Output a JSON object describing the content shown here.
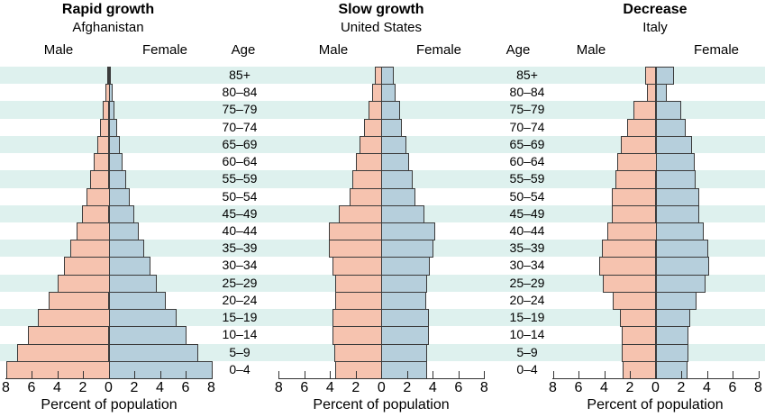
{
  "figure": {
    "age_header_label": "Age",
    "male_label": "Male",
    "female_label": "Female",
    "xlabel": "Percent of population",
    "axis_tick_labels": [
      "8",
      "6",
      "4",
      "2",
      "0",
      "2",
      "4",
      "6",
      "8"
    ]
  },
  "age_groups_top_down": [
    "85+",
    "80–84",
    "75–79",
    "70–74",
    "65–69",
    "60–64",
    "55–59",
    "50–54",
    "45–49",
    "40–44",
    "35–39",
    "30–34",
    "25–29",
    "20–24",
    "15–19",
    "10–14",
    "5–9",
    "0–4"
  ],
  "colors": {
    "male_fill": "#F6C3AF",
    "female_fill": "#B6CFDC",
    "stripe": "#DEF1EE",
    "bar_border": "#3B3B3B",
    "axis": "#333333",
    "text": "#000000"
  },
  "chart_data": [
    {
      "type": "bar",
      "variant": "population-pyramid",
      "title": "Rapid growth",
      "subtitle": "Afghanistan",
      "xlabel": "Percent of population",
      "x_range_percent_each_side": [
        0,
        8
      ],
      "categories_top_down": [
        "85+",
        "80–84",
        "75–79",
        "70–74",
        "65–69",
        "60–64",
        "55–59",
        "50–54",
        "45–49",
        "40–44",
        "35–39",
        "30–34",
        "25–29",
        "20–24",
        "15–19",
        "10–14",
        "5–9",
        "0–4"
      ],
      "series": [
        {
          "name": "Male",
          "side": "left",
          "values_percent": [
            0.1,
            0.25,
            0.45,
            0.65,
            0.9,
            1.15,
            1.45,
            1.75,
            2.1,
            2.5,
            3.0,
            3.5,
            4.0,
            4.7,
            5.5,
            6.3,
            7.1,
            8.0
          ]
        },
        {
          "name": "Female",
          "side": "right",
          "values_percent": [
            0.1,
            0.25,
            0.4,
            0.6,
            0.8,
            1.05,
            1.3,
            1.6,
            1.9,
            2.3,
            2.7,
            3.2,
            3.7,
            4.4,
            5.2,
            6.0,
            6.9,
            8.0
          ]
        }
      ]
    },
    {
      "type": "bar",
      "variant": "population-pyramid",
      "title": "Slow growth",
      "subtitle": "United States",
      "xlabel": "Percent of population",
      "x_range_percent_each_side": [
        0,
        8
      ],
      "categories_top_down": [
        "85+",
        "80–84",
        "75–79",
        "70–74",
        "65–69",
        "60–64",
        "55–59",
        "50–54",
        "45–49",
        "40–44",
        "35–39",
        "30–34",
        "25–29",
        "20–24",
        "15–19",
        "10–14",
        "5–9",
        "0–4"
      ],
      "series": [
        {
          "name": "Male",
          "side": "left",
          "values_percent": [
            0.5,
            0.7,
            1.0,
            1.35,
            1.7,
            2.0,
            2.3,
            2.5,
            3.3,
            4.1,
            4.1,
            3.8,
            3.6,
            3.6,
            3.8,
            3.8,
            3.7,
            3.6
          ]
        },
        {
          "name": "Female",
          "side": "right",
          "values_percent": [
            0.9,
            1.0,
            1.4,
            1.55,
            1.9,
            2.1,
            2.4,
            2.6,
            3.3,
            4.1,
            4.0,
            3.7,
            3.5,
            3.4,
            3.6,
            3.6,
            3.5,
            3.5
          ]
        }
      ]
    },
    {
      "type": "bar",
      "variant": "population-pyramid",
      "title": "Decrease",
      "subtitle": "Italy",
      "xlabel": "Percent of population",
      "x_range_percent_each_side": [
        0,
        8
      ],
      "categories_top_down": [
        "85+",
        "80–84",
        "75–79",
        "70–74",
        "65–69",
        "60–64",
        "55–59",
        "50–54",
        "45–49",
        "40–44",
        "35–39",
        "30–34",
        "25–29",
        "20–24",
        "15–19",
        "10–14",
        "5–9",
        "0–4"
      ],
      "series": [
        {
          "name": "Male",
          "side": "left",
          "values_percent": [
            0.8,
            0.7,
            1.7,
            2.2,
            2.7,
            3.0,
            3.1,
            3.4,
            3.4,
            3.75,
            4.2,
            4.4,
            4.1,
            3.3,
            2.8,
            2.65,
            2.65,
            2.55
          ]
        },
        {
          "name": "Female",
          "side": "right",
          "values_percent": [
            1.4,
            0.8,
            1.9,
            2.3,
            2.75,
            3.0,
            3.05,
            3.3,
            3.35,
            3.7,
            4.0,
            4.1,
            3.8,
            3.1,
            2.6,
            2.5,
            2.5,
            2.4
          ]
        }
      ]
    }
  ]
}
